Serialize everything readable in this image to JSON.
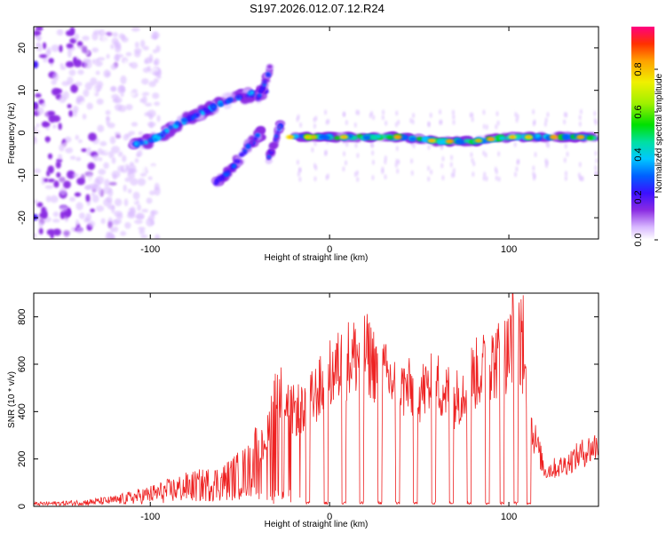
{
  "title": "S197.2026.012.07.12.R24",
  "chart_data": [
    {
      "type": "heatmap",
      "xlabel": "Height of straight line (km)",
      "ylabel": "Frequency (Hz)",
      "xlim": [
        -165,
        150
      ],
      "ylim": [
        -25,
        25
      ],
      "x_ticks": [
        -100,
        0,
        100
      ],
      "y_ticks": [
        -20,
        -10,
        0,
        10,
        20
      ],
      "colorbar": {
        "label": "Normalized spectral amplitude",
        "ticks": [
          0.0,
          0.2,
          0.4,
          0.6,
          0.8
        ],
        "range": [
          0,
          1
        ]
      },
      "features": {
        "noise_region_x": [
          -165,
          -110
        ],
        "main_ridge": {
          "x": [
            -110,
            -95,
            -85,
            -75,
            -65,
            -55,
            -45,
            -35
          ],
          "y": [
            -3,
            -1,
            2,
            4,
            6,
            8,
            9,
            10
          ]
        },
        "lower_ridge": {
          "x": [
            -65,
            -58,
            -52,
            -45,
            -38
          ],
          "y": [
            -12,
            -10,
            -7,
            -3,
            0
          ]
        },
        "upper_spike": {
          "x": [
            -40,
            -36,
            -33
          ],
          "y": [
            8,
            12,
            15
          ]
        },
        "descending_ridge": {
          "x": [
            -34,
            -31,
            -29,
            -27
          ],
          "y": [
            -6,
            -3,
            0,
            2
          ]
        },
        "flat_band": {
          "x": [
            -20,
            0,
            20,
            40,
            60,
            80,
            100,
            120,
            145
          ],
          "y": [
            -1,
            -1,
            -1,
            -1,
            -2,
            -2,
            -1,
            -1,
            -1
          ]
        }
      }
    },
    {
      "type": "line",
      "xlabel": "Height of straight line (km)",
      "ylabel": "SNR (10 * v/v)",
      "xlim": [
        -165,
        150
      ],
      "ylim": [
        0,
        900
      ],
      "x_ticks": [
        -100,
        0,
        100
      ],
      "y_ticks": [
        0,
        200,
        400,
        600,
        800
      ],
      "color": "#ee2222",
      "envelope": {
        "x": [
          -165,
          -140,
          -120,
          -100,
          -80,
          -60,
          -45,
          -35,
          -30,
          -20,
          -10,
          0,
          10,
          20,
          30,
          40,
          50,
          60,
          70,
          80,
          90,
          100,
          104,
          108,
          112,
          120,
          130,
          140,
          150
        ],
        "y": [
          10,
          15,
          25,
          50,
          80,
          100,
          150,
          300,
          500,
          400,
          450,
          550,
          620,
          650,
          550,
          500,
          480,
          520,
          450,
          550,
          600,
          650,
          800,
          600,
          350,
          150,
          170,
          220,
          260
        ]
      },
      "dropouts_x": [
        -12,
        -2,
        8,
        18,
        28,
        38,
        48,
        58,
        68,
        78,
        88,
        96,
        104,
        111
      ]
    }
  ]
}
